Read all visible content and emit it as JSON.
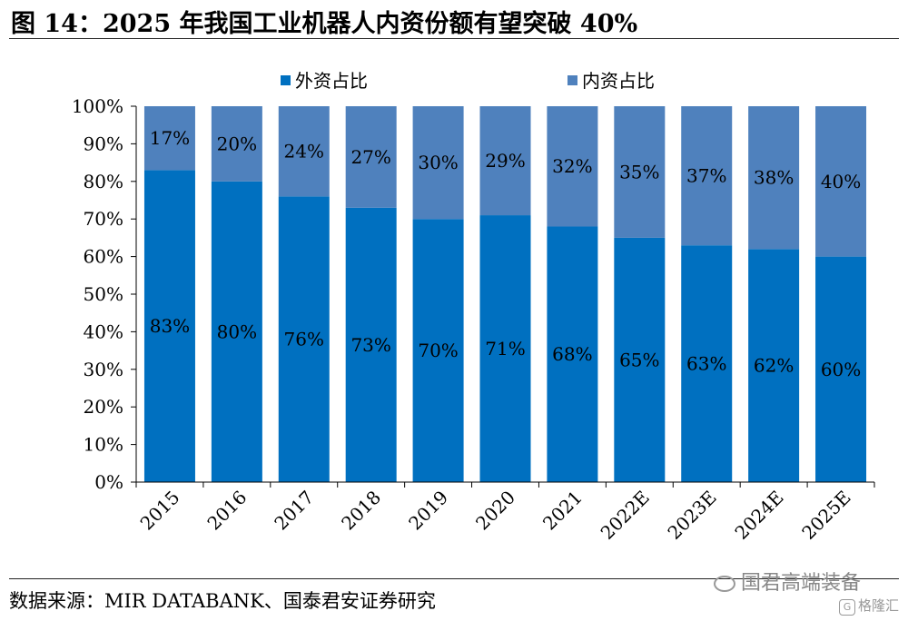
{
  "figure": {
    "title": "图 14：2025 年我国工业机器人内资份额有望突破 40%",
    "source": "数据来源：MIR DATABANK、国泰君安证券研究"
  },
  "watermark": {
    "text": "国君高端装备",
    "icon": "wechat-icon"
  },
  "footer_badge": {
    "glyph": "G",
    "text": "格隆汇"
  },
  "chart_data": {
    "type": "bar",
    "stacked": true,
    "title": "",
    "xlabel": "",
    "ylabel": "",
    "categories": [
      "2015",
      "2016",
      "2017",
      "2018",
      "2019",
      "2020",
      "2021",
      "2022E",
      "2023E",
      "2024E",
      "2025E"
    ],
    "series": [
      {
        "name": "外资占比",
        "values": [
          83,
          80,
          76,
          73,
          70,
          71,
          68,
          65,
          63,
          62,
          60
        ],
        "labels": [
          "83%",
          "80%",
          "76%",
          "73%",
          "70%",
          "71%",
          "68%",
          "65%",
          "63%",
          "62%",
          "60%"
        ],
        "color": "#0070C0"
      },
      {
        "name": "内资占比",
        "values": [
          17,
          20,
          24,
          27,
          30,
          29,
          32,
          35,
          37,
          38,
          40
        ],
        "labels": [
          "17%",
          "20%",
          "24%",
          "27%",
          "30%",
          "29%",
          "32%",
          "35%",
          "37%",
          "38%",
          "40%"
        ],
        "color": "#4F81BD"
      }
    ],
    "ylim": [
      0,
      100
    ],
    "yticks": [
      0,
      10,
      20,
      30,
      40,
      50,
      60,
      70,
      80,
      90,
      100
    ],
    "ytick_labels": [
      "0%",
      "10%",
      "20%",
      "30%",
      "40%",
      "50%",
      "60%",
      "70%",
      "80%",
      "90%",
      "100%"
    ],
    "grid": false,
    "legend_position": "top",
    "x_tick_rotation": -45
  }
}
